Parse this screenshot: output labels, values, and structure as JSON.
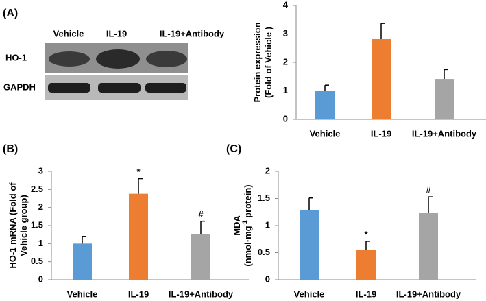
{
  "blot": {
    "panel_label": "(A)",
    "lanes": [
      "Vehicle",
      "IL-19",
      "IL-19+Antibody"
    ],
    "rows": [
      "HO-1",
      "GAPDH"
    ]
  },
  "chart_data": [
    {
      "type": "bar",
      "ylabel": [
        "Protein expression",
        "(Fold of Vehicle )"
      ],
      "categories": [
        "Vehicle",
        "IL-19",
        "IL-19+Antibody"
      ],
      "values": [
        1.0,
        2.82,
        1.42
      ],
      "errors": [
        0.2,
        0.55,
        0.33
      ],
      "colors": [
        "#5b9bd5",
        "#ed7d31",
        "#a5a5a5"
      ],
      "ylim": [
        0,
        4
      ],
      "yticks": [
        0,
        1,
        2,
        3,
        4
      ]
    },
    {
      "type": "bar",
      "panel_label": "(B)",
      "ylabel": [
        "HO-1 mRNA (Fold of",
        "Vehicle group)"
      ],
      "categories": [
        "Vehicle",
        "IL-19",
        "IL-19+Antibody"
      ],
      "values": [
        1.0,
        2.38,
        1.27
      ],
      "errors": [
        0.2,
        0.42,
        0.35
      ],
      "annotations": [
        null,
        "*",
        "#"
      ],
      "colors": [
        "#5b9bd5",
        "#ed7d31",
        "#a5a5a5"
      ],
      "ylim": [
        0,
        3
      ],
      "yticks": [
        0,
        0.5,
        1,
        1.5,
        2,
        2.5,
        3
      ]
    },
    {
      "type": "bar",
      "panel_label": "(C)",
      "ylabel": [
        "MDA",
        [
          "(nmol·mg",
          "-1",
          " protein)"
        ]
      ],
      "categories": [
        "Vehicle",
        "IL-19",
        "IL-19+Antibody"
      ],
      "values": [
        1.29,
        0.55,
        1.23
      ],
      "errors": [
        0.22,
        0.16,
        0.3
      ],
      "annotations": [
        null,
        "*",
        "#"
      ],
      "colors": [
        "#5b9bd5",
        "#ed7d31",
        "#a5a5a5"
      ],
      "ylim": [
        0,
        2
      ],
      "yticks": [
        0,
        0.5,
        1,
        1.5,
        2
      ]
    }
  ]
}
